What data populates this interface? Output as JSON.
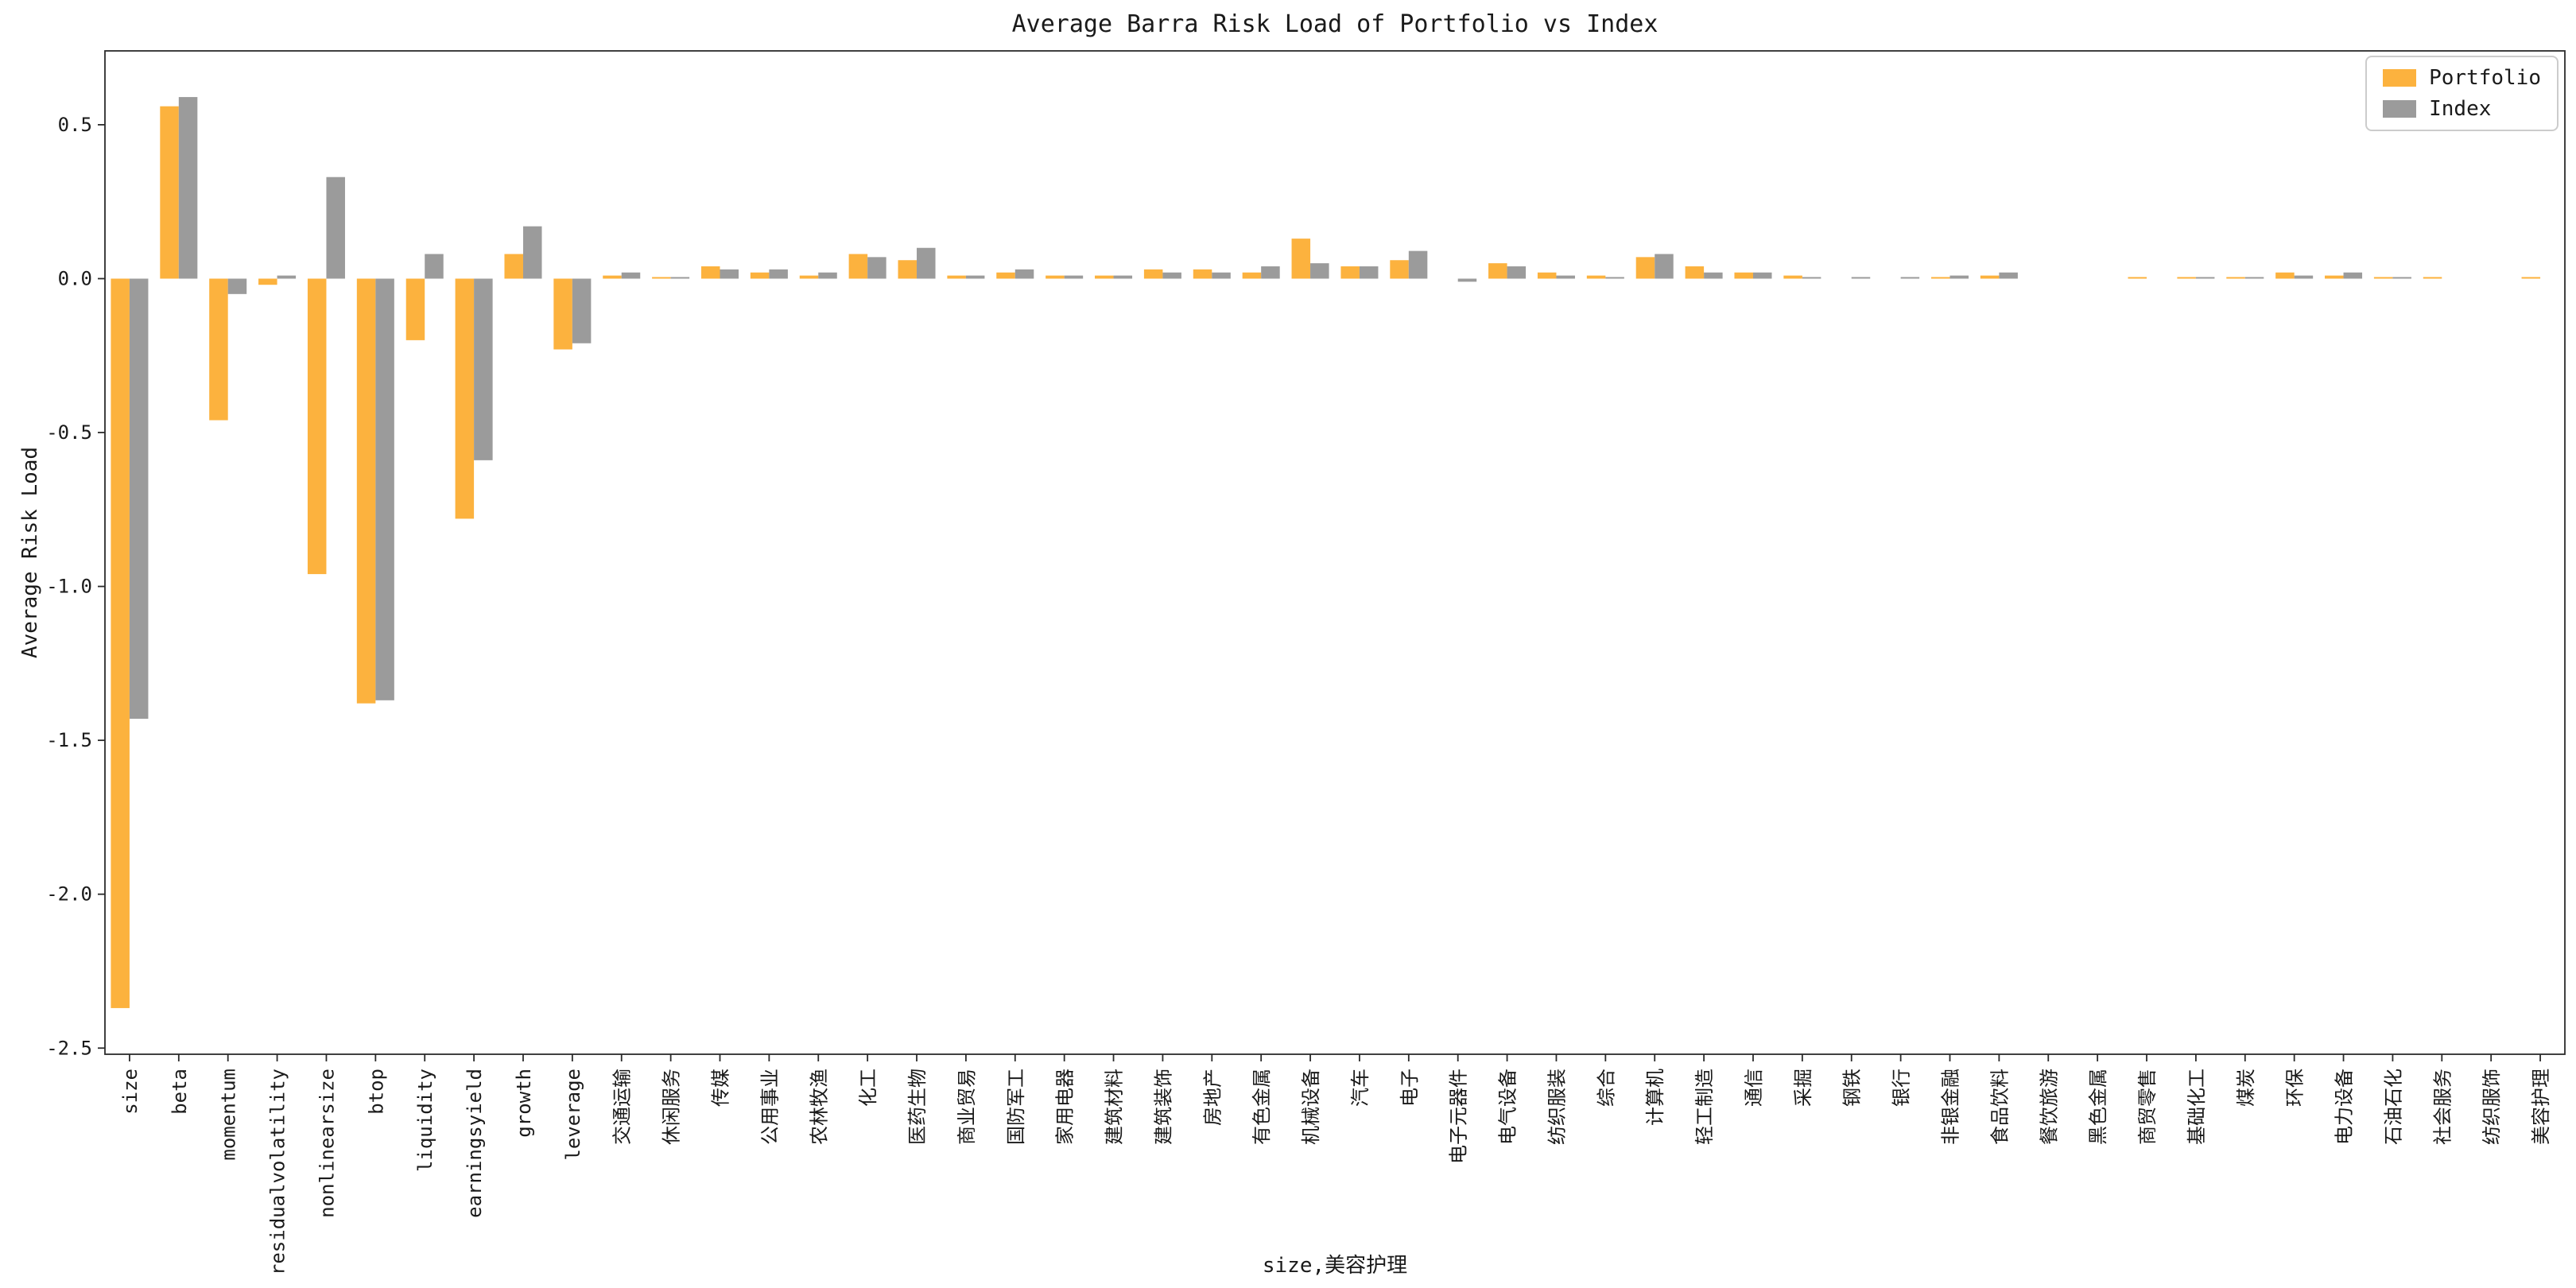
{
  "chart_data": {
    "type": "bar",
    "title": "Average Barra Risk Load of Portfolio vs Index",
    "xlabel": "size,美容护理",
    "ylabel": "Average Risk Load",
    "ylim": [
      -2.52,
      0.74
    ],
    "yticks": [
      0.5,
      0.0,
      -0.5,
      -1.0,
      -1.5,
      -2.0,
      -2.5
    ],
    "grid": false,
    "legend_position": "upper right",
    "background_color": "#ffffff",
    "spine_color": "#2b2b2b",
    "categories": [
      "size",
      "beta",
      "momentum",
      "residualvolatility",
      "nonlinearsize",
      "btop",
      "liquidity",
      "earningsyield",
      "growth",
      "leverage",
      "交通运输",
      "休闲服务",
      "传媒",
      "公用事业",
      "农林牧渔",
      "化工",
      "医药生物",
      "商业贸易",
      "国防军工",
      "家用电器",
      "建筑材料",
      "建筑装饰",
      "房地产",
      "有色金属",
      "机械设备",
      "汽车",
      "电子",
      "电子元器件",
      "电气设备",
      "纺织服装",
      "综合",
      "计算机",
      "轻工制造",
      "通信",
      "采掘",
      "钢铁",
      "银行",
      "非银金融",
      "食品饮料",
      "餐饮旅游",
      "黑色金属",
      "商贸零售",
      "基础化工",
      "煤炭",
      "环保",
      "电力设备",
      "石油石化",
      "社会服务",
      "纺织服饰",
      "美容护理"
    ],
    "series": [
      {
        "name": "Portfolio",
        "color": "#FCB23E",
        "values": [
          -2.37,
          0.56,
          -0.46,
          -0.02,
          -0.96,
          -1.38,
          -0.2,
          -0.78,
          0.08,
          -0.23,
          0.01,
          0.005,
          0.04,
          0.02,
          0.01,
          0.08,
          0.06,
          0.01,
          0.02,
          0.01,
          0.01,
          0.03,
          0.03,
          0.02,
          0.13,
          0.04,
          0.06,
          0.0,
          0.05,
          0.02,
          0.01,
          0.07,
          0.04,
          0.02,
          0.01,
          0.0,
          0.0,
          0.005,
          0.01,
          0.0,
          0.0,
          0.005,
          0.005,
          0.005,
          0.02,
          0.01,
          0.005,
          0.005,
          0.0,
          0.005
        ]
      },
      {
        "name": "Index",
        "color": "#9B9B9B",
        "values": [
          -1.43,
          0.59,
          -0.05,
          0.01,
          0.33,
          -1.37,
          0.08,
          -0.59,
          0.17,
          -0.21,
          0.02,
          0.005,
          0.03,
          0.03,
          0.02,
          0.07,
          0.1,
          0.01,
          0.03,
          0.01,
          0.01,
          0.02,
          0.02,
          0.04,
          0.05,
          0.04,
          0.09,
          -0.01,
          0.04,
          0.01,
          0.005,
          0.08,
          0.02,
          0.02,
          0.005,
          0.005,
          0.005,
          0.01,
          0.02,
          0.0,
          0.0,
          0.0,
          0.005,
          0.005,
          0.01,
          0.02,
          0.005,
          0.0,
          0.0,
          0.0
        ]
      }
    ]
  }
}
